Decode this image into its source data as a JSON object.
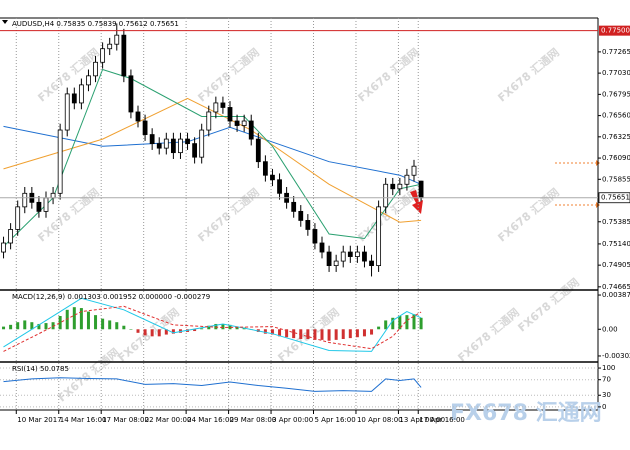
{
  "chart_data": [
    {
      "type": "candlestick",
      "title": "AUDUSD,H4 0.75835 0.75839 0.75612 0.75651",
      "xlim": [
        -0.5,
        84
      ],
      "ylim": [
        0.7463,
        0.7764
      ],
      "yticks": [
        0.77265,
        {
          "value": 0.7703,
          "label": "0.77030"
        },
        0.76795,
        {
          "value": 0.7656,
          "label": "0.76560"
        },
        0.76325,
        {
          "value": 0.7609,
          "label": "0.76090"
        },
        0.75855,
        0.75385,
        {
          "value": 0.7514,
          "label": "0.75140"
        },
        0.74905,
        0.74665
      ],
      "highlight_level": {
        "value": 0.775,
        "label": "0.77500"
      },
      "last_price": 0.75651,
      "open": [
        0.7505,
        0.7515,
        0.753,
        0.7555,
        0.757,
        0.756,
        0.755,
        0.7565,
        0.757,
        0.764,
        0.768,
        0.767,
        0.769,
        0.77,
        0.7715,
        0.773,
        0.7735,
        0.7745,
        0.77,
        0.766,
        0.765,
        0.7635,
        0.7625,
        0.762,
        0.763,
        0.7615,
        0.763,
        0.7625,
        0.761,
        0.764,
        0.766,
        0.767,
        0.7665,
        0.765,
        0.7645,
        0.765,
        0.763,
        0.7605,
        0.759,
        0.7585,
        0.757,
        0.756,
        0.755,
        0.754,
        0.753,
        0.7515,
        0.7505,
        0.749,
        0.7495,
        0.7505,
        0.75,
        0.7505,
        0.7495,
        0.749,
        0.7555,
        0.758,
        0.7575,
        0.758,
        0.759,
        0.75835
      ],
      "high": [
        0.7522,
        0.7537,
        0.7562,
        0.7577,
        0.7577,
        0.7567,
        0.7572,
        0.7577,
        0.7647,
        0.7687,
        0.7687,
        0.7697,
        0.7707,
        0.7722,
        0.7737,
        0.7742,
        0.7758,
        0.7752,
        0.7707,
        0.7667,
        0.7657,
        0.7642,
        0.7632,
        0.7637,
        0.7637,
        0.7637,
        0.7637,
        0.7632,
        0.7647,
        0.7667,
        0.7677,
        0.7677,
        0.7672,
        0.7657,
        0.7657,
        0.7657,
        0.7637,
        0.7612,
        0.7597,
        0.7592,
        0.7577,
        0.7567,
        0.7557,
        0.7547,
        0.7537,
        0.7522,
        0.7512,
        0.7502,
        0.7512,
        0.7512,
        0.7512,
        0.7512,
        0.7502,
        0.7562,
        0.7587,
        0.7587,
        0.7587,
        0.7597,
        0.7607,
        0.75839
      ],
      "low": [
        0.7498,
        0.7508,
        0.7523,
        0.7548,
        0.7553,
        0.7543,
        0.7543,
        0.7558,
        0.7563,
        0.7633,
        0.7663,
        0.7663,
        0.7683,
        0.7693,
        0.7708,
        0.7723,
        0.7728,
        0.7693,
        0.7653,
        0.7643,
        0.7628,
        0.7618,
        0.7613,
        0.7613,
        0.7608,
        0.7608,
        0.7618,
        0.7603,
        0.7603,
        0.7633,
        0.7653,
        0.7658,
        0.7643,
        0.7638,
        0.7638,
        0.7623,
        0.7598,
        0.7583,
        0.7578,
        0.7563,
        0.7553,
        0.7543,
        0.7533,
        0.7523,
        0.7508,
        0.7498,
        0.7483,
        0.7483,
        0.7488,
        0.7493,
        0.7493,
        0.7488,
        0.7478,
        0.7483,
        0.7548,
        0.7568,
        0.7568,
        0.7573,
        0.7583,
        0.75612
      ],
      "close": [
        0.7515,
        0.753,
        0.7555,
        0.757,
        0.756,
        0.755,
        0.7565,
        0.757,
        0.764,
        0.768,
        0.767,
        0.769,
        0.77,
        0.7715,
        0.773,
        0.7735,
        0.7745,
        0.77,
        0.766,
        0.765,
        0.7635,
        0.7625,
        0.762,
        0.763,
        0.7615,
        0.763,
        0.7625,
        0.761,
        0.764,
        0.766,
        0.767,
        0.7665,
        0.765,
        0.7645,
        0.765,
        0.763,
        0.7605,
        0.759,
        0.7585,
        0.757,
        0.756,
        0.755,
        0.754,
        0.753,
        0.7515,
        0.7505,
        0.749,
        0.7495,
        0.7505,
        0.75,
        0.7505,
        0.7495,
        0.749,
        0.7555,
        0.758,
        0.7575,
        0.758,
        0.759,
        0.76,
        0.75651
      ],
      "lines": [
        {
          "color": "#1e6fd0",
          "x": [
            0,
            14,
            26,
            32,
            46,
            56,
            59
          ],
          "values": [
            0.7644,
            0.7622,
            0.7627,
            0.7643,
            0.7605,
            0.759,
            0.758
          ]
        },
        {
          "color": "#f0a030",
          "x": [
            0,
            14,
            26,
            35,
            46,
            56,
            59
          ],
          "values": [
            0.7597,
            0.763,
            0.7675,
            0.764,
            0.758,
            0.7538,
            0.754
          ]
        },
        {
          "color": "#2aa070",
          "x": [
            0,
            7,
            14,
            18,
            28,
            34,
            38,
            46,
            51,
            56,
            59
          ],
          "values": [
            0.7511,
            0.7565,
            0.7707,
            0.7697,
            0.7655,
            0.7655,
            0.7622,
            0.7525,
            0.752,
            0.7575,
            0.758
          ]
        }
      ]
    },
    {
      "type": "macd",
      "title": "MACD(12,26,9) 0.001303 0.001952 0.000000 -0.000279",
      "xlim": [
        -0.5,
        84
      ],
      "ylim": [
        -0.00359,
        0.00433
      ],
      "yticks": [
        0.003873,
        {
          "value": 0,
          "label": "0.00"
        },
        -0.00302
      ],
      "up_color": "#2e9e2e",
      "down_color": "#d03030",
      "values": [
        0.0003,
        0.0005,
        0.0008,
        0.001,
        0.0008,
        0.0006,
        0.0007,
        0.0008,
        0.0015,
        0.0022,
        0.0025,
        0.0024,
        0.002,
        0.0016,
        0.0012,
        0.001,
        0.0008,
        0.0004,
        0.0,
        -0.0004,
        -0.0007,
        -0.0008,
        -0.0008,
        -0.0006,
        -0.0005,
        -0.0004,
        -0.0003,
        -0.0002,
        0.0001,
        0.0004,
        0.0006,
        0.0006,
        0.0005,
        0.0003,
        0.0002,
        0.0,
        -0.0003,
        -0.0005,
        -0.0006,
        -0.0008,
        -0.0009,
        -0.001,
        -0.0011,
        -0.0011,
        -0.0012,
        -0.0012,
        -0.0013,
        -0.0012,
        -0.0011,
        -0.001,
        -0.0009,
        -0.0008,
        -0.0006,
        0.0003,
        0.001,
        0.0013,
        0.0015,
        0.0016,
        0.0017,
        0.0013
      ],
      "lines": [
        {
          "color": "#20c8e8",
          "dashed": false,
          "x": [
            0,
            5,
            11,
            17,
            24,
            31,
            38,
            46,
            52,
            55,
            57,
            59
          ],
          "values": [
            -0.002,
            0.0005,
            0.0035,
            0.0022,
            -0.0004,
            0.0006,
            -0.0005,
            -0.0024,
            -0.0025,
            0.001,
            0.002,
            0.001303
          ]
        },
        {
          "color": "#e03030",
          "dashed": true,
          "x": [
            0,
            5,
            11,
            17,
            24,
            31,
            38,
            46,
            52,
            55,
            57,
            59
          ],
          "values": [
            -0.0025,
            -0.0005,
            0.002,
            0.0026,
            0.0005,
            0.0002,
            0.0003,
            -0.0015,
            -0.0022,
            -0.0008,
            0.001,
            0.001952
          ]
        }
      ]
    },
    {
      "type": "line",
      "title": "RSI(14) 50.0785",
      "xlim": [
        -0.5,
        84
      ],
      "ylim": [
        -8,
        113
      ],
      "yticks": [
        100,
        70,
        30,
        0
      ],
      "color": "#1e6fd0",
      "x": [
        0,
        4,
        8,
        12,
        16,
        20,
        24,
        28,
        32,
        36,
        40,
        44,
        48,
        52,
        54,
        56,
        58,
        59
      ],
      "values": [
        65,
        72,
        75,
        73,
        72,
        58,
        60,
        55,
        64,
        55,
        48,
        40,
        42,
        40,
        72,
        68,
        72,
        50.0785
      ],
      "xticks": [
        {
          "value": 1.8,
          "label": "10 Mar 2017"
        },
        {
          "value": 7.8,
          "label": "14 Mar 16:00"
        },
        {
          "value": 13.8,
          "label": "17 Mar 08:00"
        },
        {
          "value": 19.8,
          "label": "22 Mar 00:00"
        },
        {
          "value": 25.8,
          "label": "24 Mar 16:00"
        },
        {
          "value": 31.8,
          "label": "29 Mar 08:00"
        },
        {
          "value": 37.8,
          "label": "3 Apr 00:00"
        },
        {
          "value": 43.8,
          "label": "5 Apr 16:00"
        },
        {
          "value": 49.8,
          "label": "10 Apr 08:00"
        },
        {
          "value": 55.8,
          "label": "13 Apr 00:00"
        },
        {
          "value": 58.6,
          "label": "17 Apr 16:00"
        }
      ],
      "grid": true
    }
  ],
  "watermark": "FX678 汇通网"
}
